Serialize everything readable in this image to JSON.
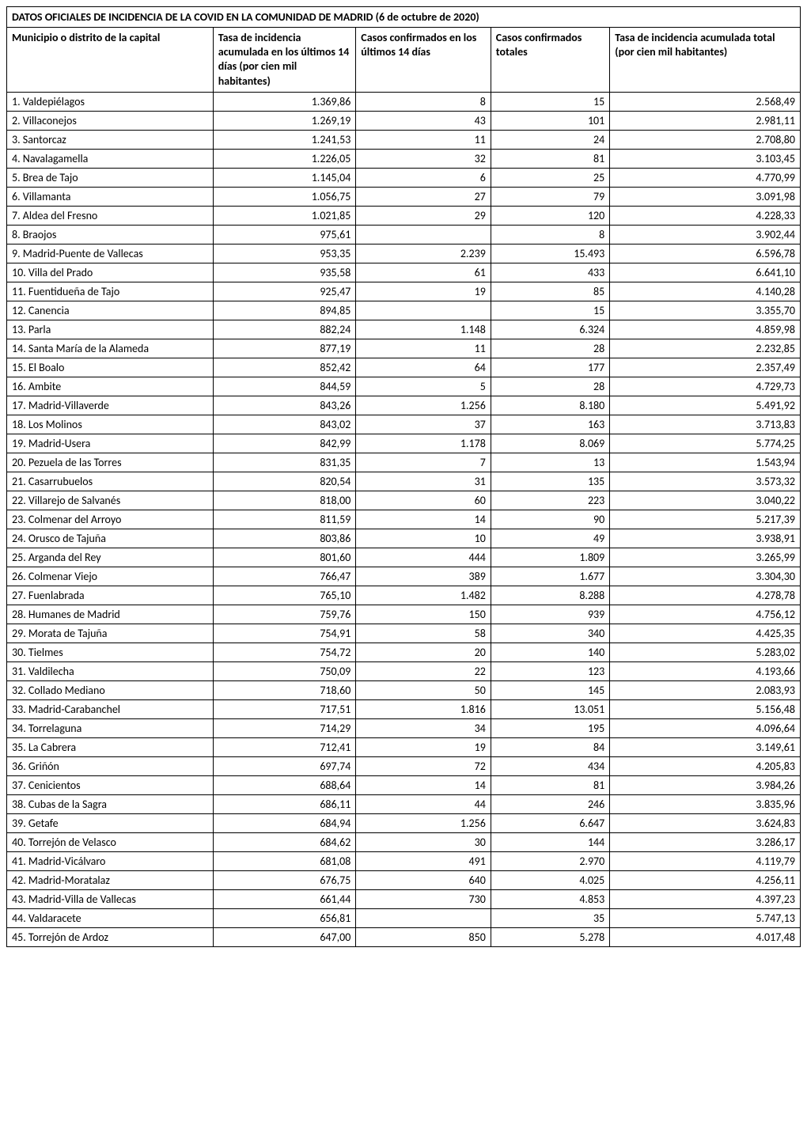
{
  "title": "DATOS OFICIALES DE INCIDENCIA DE LA COVID EN LA COMUNIDAD DE MADRID (6 de octubre de 2020)",
  "columns": [
    "Municipio o distrito de la capital",
    "Tasa de incidencia acumulada en los últimos 14 días (por cien mil habitantes)",
    "Casos confirmados en los últimos 14 días",
    "Casos confirmados totales",
    "Tasa de incidencia acumulada total (por cien mil habitantes)"
  ],
  "column_alignments": [
    "left",
    "right",
    "right",
    "right",
    "right"
  ],
  "column_widths_pct": [
    26,
    18,
    17,
    15,
    24
  ],
  "header_font_weight": "bold",
  "font_family": "Calibri, Arial, sans-serif",
  "font_size_pt": 11,
  "border_color": "#000000",
  "background_color": "#ffffff",
  "rows": [
    [
      "1. Valdepiélagos",
      "1.369,86",
      "8",
      "15",
      "2.568,49"
    ],
    [
      "2. Villaconejos",
      "1.269,19",
      "43",
      "101",
      "2.981,11"
    ],
    [
      "3. Santorcaz",
      "1.241,53",
      "11",
      "24",
      "2.708,80"
    ],
    [
      "4. Navalagamella",
      "1.226,05",
      "32",
      "81",
      "3.103,45"
    ],
    [
      "5. Brea de Tajo",
      "1.145,04",
      "6",
      "25",
      "4.770,99"
    ],
    [
      "6. Villamanta",
      "1.056,75",
      "27",
      "79",
      "3.091,98"
    ],
    [
      "7. Aldea del Fresno",
      "1.021,85",
      "29",
      "120",
      "4.228,33"
    ],
    [
      "8. Braojos",
      "975,61",
      "",
      "8",
      "3.902,44"
    ],
    [
      "9. Madrid-Puente de Vallecas",
      "953,35",
      "2.239",
      "15.493",
      "6.596,78"
    ],
    [
      "10. Villa del Prado",
      "935,58",
      "61",
      "433",
      "6.641,10"
    ],
    [
      "11. Fuentidueña de Tajo",
      "925,47",
      "19",
      "85",
      "4.140,28"
    ],
    [
      "12. Canencia",
      "894,85",
      "",
      "15",
      "3.355,70"
    ],
    [
      "13. Parla",
      "882,24",
      "1.148",
      "6.324",
      "4.859,98"
    ],
    [
      "14. Santa María de la Alameda",
      "877,19",
      "11",
      "28",
      "2.232,85"
    ],
    [
      "15. El Boalo",
      "852,42",
      "64",
      "177",
      "2.357,49"
    ],
    [
      "16. Ambite",
      "844,59",
      "5",
      "28",
      "4.729,73"
    ],
    [
      "17. Madrid-Villaverde",
      "843,26",
      "1.256",
      "8.180",
      "5.491,92"
    ],
    [
      "18. Los Molinos",
      "843,02",
      "37",
      "163",
      "3.713,83"
    ],
    [
      "19. Madrid-Usera",
      "842,99",
      "1.178",
      "8.069",
      "5.774,25"
    ],
    [
      "20. Pezuela de las Torres",
      "831,35",
      "7",
      "13",
      "1.543,94"
    ],
    [
      "21. Casarrubuelos",
      "820,54",
      "31",
      "135",
      "3.573,32"
    ],
    [
      "22. Villarejo de Salvanés",
      "818,00",
      "60",
      "223",
      "3.040,22"
    ],
    [
      "23. Colmenar del Arroyo",
      "811,59",
      "14",
      "90",
      "5.217,39"
    ],
    [
      "24. Orusco de Tajuña",
      "803,86",
      "10",
      "49",
      "3.938,91"
    ],
    [
      "25. Arganda del Rey",
      "801,60",
      "444",
      "1.809",
      "3.265,99"
    ],
    [
      "26. Colmenar Viejo",
      "766,47",
      "389",
      "1.677",
      "3.304,30"
    ],
    [
      "27. Fuenlabrada",
      "765,10",
      "1.482",
      "8.288",
      "4.278,78"
    ],
    [
      "28. Humanes de Madrid",
      "759,76",
      "150",
      "939",
      "4.756,12"
    ],
    [
      "29. Morata de Tajuña",
      "754,91",
      "58",
      "340",
      "4.425,35"
    ],
    [
      "30. Tielmes",
      "754,72",
      "20",
      "140",
      "5.283,02"
    ],
    [
      "31. Valdilecha",
      "750,09",
      "22",
      "123",
      "4.193,66"
    ],
    [
      "32. Collado Mediano",
      "718,60",
      "50",
      "145",
      "2.083,93"
    ],
    [
      "33. Madrid-Carabanchel",
      "717,51",
      "1.816",
      "13.051",
      "5.156,48"
    ],
    [
      "34. Torrelaguna",
      "714,29",
      "34",
      "195",
      "4.096,64"
    ],
    [
      "35. La Cabrera",
      "712,41",
      "19",
      "84",
      "3.149,61"
    ],
    [
      "36. Griñón",
      "697,74",
      "72",
      "434",
      "4.205,83"
    ],
    [
      "37. Cenicientos",
      "688,64",
      "14",
      "81",
      "3.984,26"
    ],
    [
      "38. Cubas de la Sagra",
      "686,11",
      "44",
      "246",
      "3.835,96"
    ],
    [
      "39. Getafe",
      "684,94",
      "1.256",
      "6.647",
      "3.624,83"
    ],
    [
      "40. Torrejón de Velasco",
      "684,62",
      "30",
      "144",
      "3.286,17"
    ],
    [
      "41. Madrid-Vicálvaro",
      "681,08",
      "491",
      "2.970",
      "4.119,79"
    ],
    [
      "42. Madrid-Moratalaz",
      "676,75",
      "640",
      "4.025",
      "4.256,11"
    ],
    [
      "43. Madrid-Villa de Vallecas",
      "661,44",
      "730",
      "4.853",
      "4.397,23"
    ],
    [
      "44. Valdaracete",
      "656,81",
      "",
      "35",
      "5.747,13"
    ],
    [
      "45. Torrejón de Ardoz",
      "647,00",
      "850",
      "5.278",
      "4.017,48"
    ]
  ]
}
